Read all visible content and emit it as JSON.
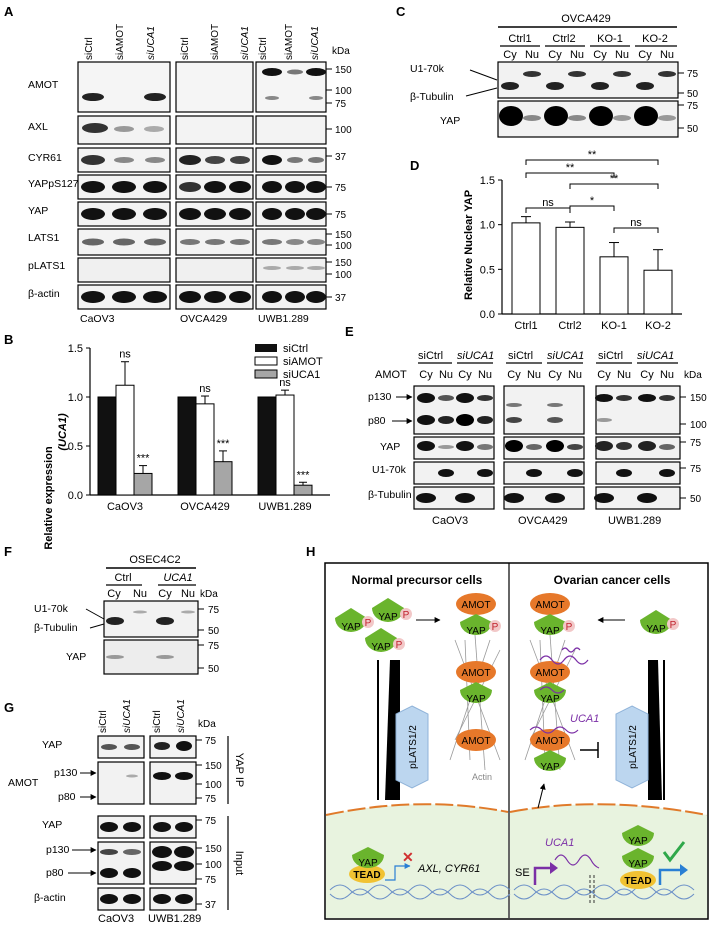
{
  "panels": {
    "A": {
      "letter": "A",
      "lane_labels": [
        "siCtrl",
        "siAMOT",
        "siUCA1"
      ],
      "kda": "kDa",
      "rows": [
        "AMOT",
        "AXL",
        "CYR61",
        "YAPpS127",
        "YAP",
        "LATS1",
        "pLATS1",
        "β-actin"
      ],
      "markers": [
        "150",
        "100",
        "75",
        "100",
        "37",
        "75",
        "75",
        "150",
        "100",
        "150",
        "100",
        "37"
      ],
      "cells": [
        "CaOV3",
        "OVCA429",
        "UWB1.289"
      ]
    },
    "B": {
      "letter": "B",
      "ylabel": "Relative expression",
      "ylabel2": "(UCA1)",
      "yticks": [
        "0.0",
        "0.5",
        "1.0",
        "1.5"
      ],
      "ns": "ns",
      "sig": "***"
    },
    "C": {
      "letter": "C",
      "title": "OVCA429",
      "groups": [
        "Ctrl1",
        "Ctrl2",
        "KO-1",
        "KO-2"
      ],
      "cy": "Cy",
      "nu": "Nu",
      "rows": [
        "U1-70k",
        "β-Tubulin",
        "YAP"
      ],
      "markers": [
        "75",
        "50",
        "75",
        "50"
      ]
    },
    "D": {
      "letter": "D",
      "ylabel": "Relative Nuclear YAP",
      "yticks": [
        "0.0",
        "0.5",
        "1.0",
        "1.5"
      ],
      "sig": [
        "**",
        "**",
        "**",
        "ns",
        "*",
        "ns"
      ]
    },
    "E": {
      "letter": "E",
      "groups": [
        "siCtrl",
        "siUCA1",
        "siCtrl",
        "siUCA1",
        "siCtrl",
        "siUCA1"
      ],
      "amot": "AMOT",
      "cy": "Cy",
      "nu": "Nu",
      "kda": "kDa",
      "rows": [
        "p130",
        "p80",
        "YAP",
        "U1-70k",
        "β-Tubulin"
      ],
      "markers": [
        "150",
        "100",
        "75",
        "75",
        "50"
      ],
      "cells": [
        "CaOV3",
        "OVCA429",
        "UWB1.289"
      ]
    },
    "F": {
      "letter": "F",
      "title": "OSEC4C2",
      "groups": [
        "Ctrl",
        "UCA1"
      ],
      "cy": "Cy",
      "nu": "Nu",
      "kda": "kDa",
      "rows": [
        "U1-70k",
        "β-Tubulin",
        "YAP"
      ],
      "markers": [
        "75",
        "50",
        "75",
        "50"
      ]
    },
    "G": {
      "letter": "G",
      "lane_labels": [
        "siCtrl",
        "siUCA1",
        "siCtrl",
        "siUCA1"
      ],
      "kda": "kDa",
      "rows": [
        "YAP",
        "p130",
        "p80",
        "YAP",
        "p130",
        "p80",
        "β-actin"
      ],
      "amot": "AMOT",
      "markers": [
        "75",
        "150",
        "100",
        "75",
        "75",
        "150",
        "100",
        "75",
        "37"
      ],
      "side": [
        "YAP IP",
        "Input"
      ],
      "cells": [
        "CaOV3",
        "UWB1.289"
      ]
    },
    "H": {
      "letter": "H",
      "left_title": "Normal precursor cells",
      "right_title": "Ovarian cancer cells",
      "yap": "YAP",
      "amot": "AMOT",
      "tead": "TEAD",
      "p": "P",
      "plats": "pLATS1/2",
      "actin": "Actin",
      "uca1": "UCA1",
      "genes": "AXL, CYR61",
      "se": "SE"
    }
  },
  "chart_data": [
    {
      "type": "bar",
      "panel": "B",
      "categories": [
        "CaOV3",
        "OVCA429",
        "UWB1.289"
      ],
      "series": [
        {
          "name": "siCtrl",
          "values": [
            1.0,
            1.0,
            1.0
          ],
          "errors": [
            0,
            0,
            0
          ]
        },
        {
          "name": "siAMOT",
          "values": [
            1.12,
            0.93,
            1.02
          ],
          "errors": [
            0.24,
            0.08,
            0.05
          ]
        },
        {
          "name": "siUCA1",
          "values": [
            0.22,
            0.34,
            0.1
          ],
          "errors": [
            0.08,
            0.11,
            0.03
          ]
        }
      ],
      "colors": [
        "#111111",
        "#ffffff",
        "#a6a6a6"
      ],
      "ylabel": "Relative expression (UCA1)",
      "ylim": [
        0,
        1.5
      ],
      "legend": "top-right"
    },
    {
      "type": "bar",
      "panel": "D",
      "categories": [
        "Ctrl1",
        "Ctrl2",
        "KO-1",
        "KO-2"
      ],
      "values": [
        1.02,
        0.97,
        0.64,
        0.49
      ],
      "errors": [
        0.07,
        0.06,
        0.16,
        0.23
      ],
      "ylabel": "Relative Nuclear YAP",
      "ylim": [
        0,
        1.5
      ]
    }
  ]
}
